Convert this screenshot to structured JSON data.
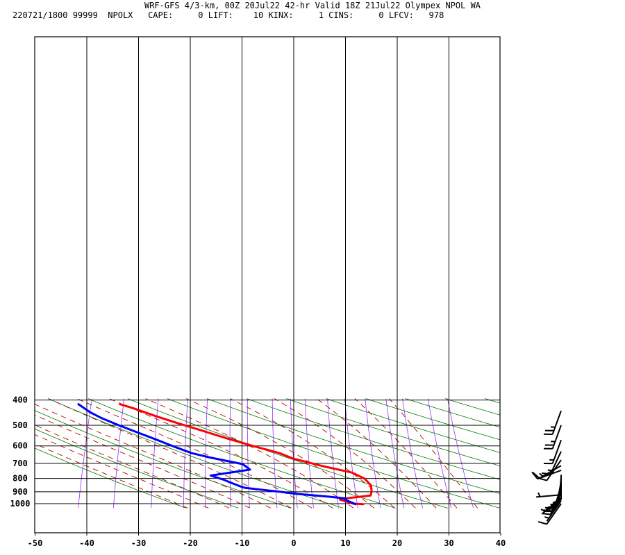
{
  "header": {
    "title": "WRF-GFS 4/3-km, 00Z 20Jul22 42-hr Valid 18Z 21Jul22 Olympex NPOL WA",
    "info": "220721/1800 99999  NPOLX   CAPE:     0 LIFT:    10 KINX:     1 CINS:     0 LFCV:   978"
  },
  "chart_data": {
    "type": "line",
    "subtype": "skew-T log-p diagram",
    "xlim": [
      -50,
      40
    ],
    "ylim": [
      1040,
      400
    ],
    "y_scale": "log",
    "x_ticks": [
      -50,
      -40,
      -30,
      -20,
      -10,
      0,
      10,
      20,
      30,
      40
    ],
    "y_ticks": [
      1000,
      900,
      800,
      700,
      600,
      500,
      400
    ],
    "grid": true,
    "colors": {
      "temperature": "#ff0000",
      "dewpoint": "#0000ff",
      "dry_adiabat": "#007a00",
      "moist_adiabat": "#b00000",
      "mixing_ratio": "#9b30ff",
      "grid": "#000000"
    },
    "series": [
      {
        "id": "temperature",
        "points": [
          [
            13.5,
            1005
          ],
          [
            11.5,
            1000
          ],
          [
            8.5,
            965
          ],
          [
            9.5,
            955
          ],
          [
            14,
            930
          ],
          [
            13.8,
            900
          ],
          [
            13,
            850
          ],
          [
            11,
            800
          ],
          [
            8,
            760
          ],
          [
            2,
            720
          ],
          [
            -5,
            670
          ],
          [
            -8,
            640
          ],
          [
            -14,
            600
          ],
          [
            -20,
            560
          ],
          [
            -26,
            520
          ],
          [
            -31,
            490
          ],
          [
            -36,
            460
          ],
          [
            -41,
            430
          ],
          [
            -44,
            415
          ]
        ]
      },
      {
        "id": "dewpoint",
        "points": [
          [
            12,
            1005
          ],
          [
            9.5,
            965
          ],
          [
            9.5,
            955
          ],
          [
            6,
            940
          ],
          [
            -1,
            915
          ],
          [
            -4,
            900
          ],
          [
            -11,
            870
          ],
          [
            -12,
            860
          ],
          [
            -14,
            835
          ],
          [
            -16,
            810
          ],
          [
            -19,
            780
          ],
          [
            -12,
            740
          ],
          [
            -14,
            705
          ],
          [
            -21,
            665
          ],
          [
            -25,
            640
          ],
          [
            -29,
            605
          ],
          [
            -33,
            570
          ],
          [
            -38,
            530
          ],
          [
            -42,
            500
          ],
          [
            -46,
            470
          ],
          [
            -49,
            445
          ],
          [
            -52,
            415
          ]
        ]
      }
    ],
    "wind_barbs": [
      {
        "p": 1000,
        "dir": 215,
        "kt": 10
      },
      {
        "p": 975,
        "dir": 215,
        "kt": 5
      },
      {
        "p": 950,
        "dir": 230,
        "kt": 5
      },
      {
        "p": 925,
        "dir": 265,
        "kt": 5
      },
      {
        "p": 900,
        "dir": 205,
        "kt": 20
      },
      {
        "p": 870,
        "dir": 200,
        "kt": 20
      },
      {
        "p": 845,
        "dir": 195,
        "kt": 15
      },
      {
        "p": 820,
        "dir": 190,
        "kt": 10
      },
      {
        "p": 795,
        "dir": 185,
        "kt": 10
      },
      {
        "p": 775,
        "dir": 180,
        "kt": 10
      },
      {
        "p": 745,
        "dir": 250,
        "kt": 10
      },
      {
        "p": 715,
        "dir": 240,
        "kt": 15
      },
      {
        "p": 680,
        "dir": 215,
        "kt": 10
      },
      {
        "p": 630,
        "dir": 205,
        "kt": 15
      },
      {
        "p": 570,
        "dir": 200,
        "kt": 15
      },
      {
        "p": 500,
        "dir": 200,
        "kt": 25
      },
      {
        "p": 440,
        "dir": 200,
        "kt": 25
      }
    ]
  }
}
